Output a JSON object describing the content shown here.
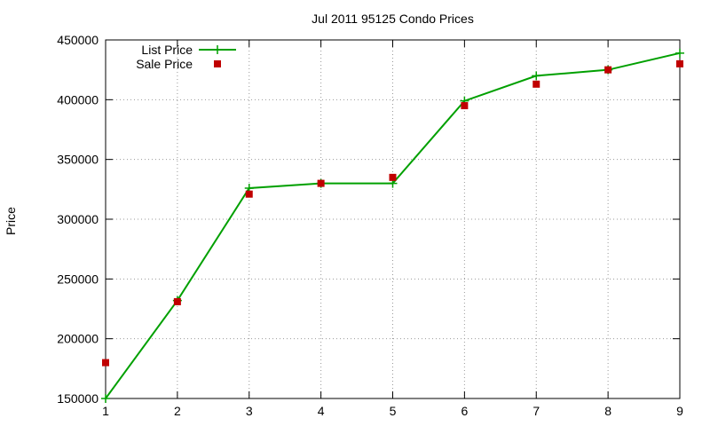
{
  "chart_data": {
    "type": "line",
    "title": "Jul 2011 95125 Condo Prices",
    "xlabel": "",
    "ylabel": "Price",
    "xlim": [
      1,
      9
    ],
    "ylim": [
      150000,
      450000
    ],
    "x_ticks": [
      1,
      2,
      3,
      4,
      5,
      6,
      7,
      8,
      9
    ],
    "y_ticks": [
      150000,
      200000,
      250000,
      300000,
      350000,
      400000,
      450000
    ],
    "grid": true,
    "legend_position": "top-left",
    "x": [
      1,
      2,
      3,
      4,
      5,
      6,
      7,
      8,
      9
    ],
    "series": [
      {
        "name": "List Price",
        "style": "line-with-plus-markers",
        "color": "#00a000",
        "values": [
          150000,
          232000,
          326000,
          330000,
          330000,
          399000,
          420000,
          425000,
          439000
        ]
      },
      {
        "name": "Sale Price",
        "style": "square-points",
        "color": "#c00000",
        "values": [
          180000,
          231000,
          321000,
          330000,
          335000,
          395000,
          413000,
          425000,
          430000
        ]
      }
    ]
  }
}
